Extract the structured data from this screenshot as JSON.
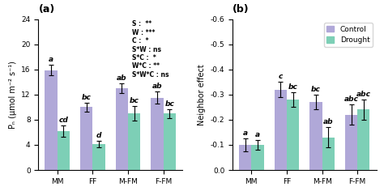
{
  "chart_data": [
    {
      "type": "bar",
      "title": "(a)",
      "categories": [
        "MM",
        "FF",
        "M-FM",
        "F-FM"
      ],
      "ylabel": "Pₙ (µmol m⁻² s⁻¹)",
      "ylim": [
        0,
        24
      ],
      "yticks": [
        0,
        4,
        8,
        12,
        16,
        20,
        24
      ],
      "series": [
        {
          "name": "Control",
          "color": "#b0a8d8",
          "values": [
            15.9,
            10.0,
            13.0,
            11.5
          ],
          "errors": [
            0.8,
            0.7,
            0.8,
            1.0
          ],
          "significance_labels": [
            "a",
            "bc",
            "ab",
            "ab"
          ]
        },
        {
          "name": "Drought",
          "color": "#7dcfb6",
          "values": [
            6.2,
            4.1,
            9.0,
            9.0
          ],
          "errors": [
            0.9,
            0.5,
            1.2,
            0.7
          ],
          "significance_labels": [
            "cd",
            "d",
            "bc",
            "bc"
          ]
        }
      ],
      "annotations": [
        "S :  **\nW : ***\nC :  *\nS*W : ns\nS*C :  *\nW*C : **\nS*W*C : ns"
      ]
    },
    {
      "type": "bar",
      "title": "(b)",
      "categories": [
        "MM",
        "FF",
        "M-FM",
        "F-FM"
      ],
      "ylabel": "Neighbor effect",
      "ylim": [
        0.0,
        -0.6
      ],
      "yticks": [
        -0.6,
        -0.5,
        -0.4,
        -0.3,
        -0.2,
        -0.1,
        0.0
      ],
      "series": [
        {
          "name": "Control",
          "color": "#b0a8d8",
          "values": [
            -0.1,
            -0.32,
            -0.27,
            -0.22
          ],
          "errors": [
            0.025,
            0.03,
            0.03,
            0.04
          ],
          "significance_labels": [
            "a",
            "c",
            "bc",
            "abc"
          ]
        },
        {
          "name": "Drought",
          "color": "#7dcfb6",
          "values": [
            -0.1,
            -0.28,
            -0.13,
            -0.24
          ],
          "errors": [
            0.02,
            0.03,
            0.04,
            0.04
          ],
          "significance_labels": [
            "a",
            "bc",
            "ab",
            "abc"
          ]
        }
      ],
      "legend": "upper right"
    }
  ]
}
